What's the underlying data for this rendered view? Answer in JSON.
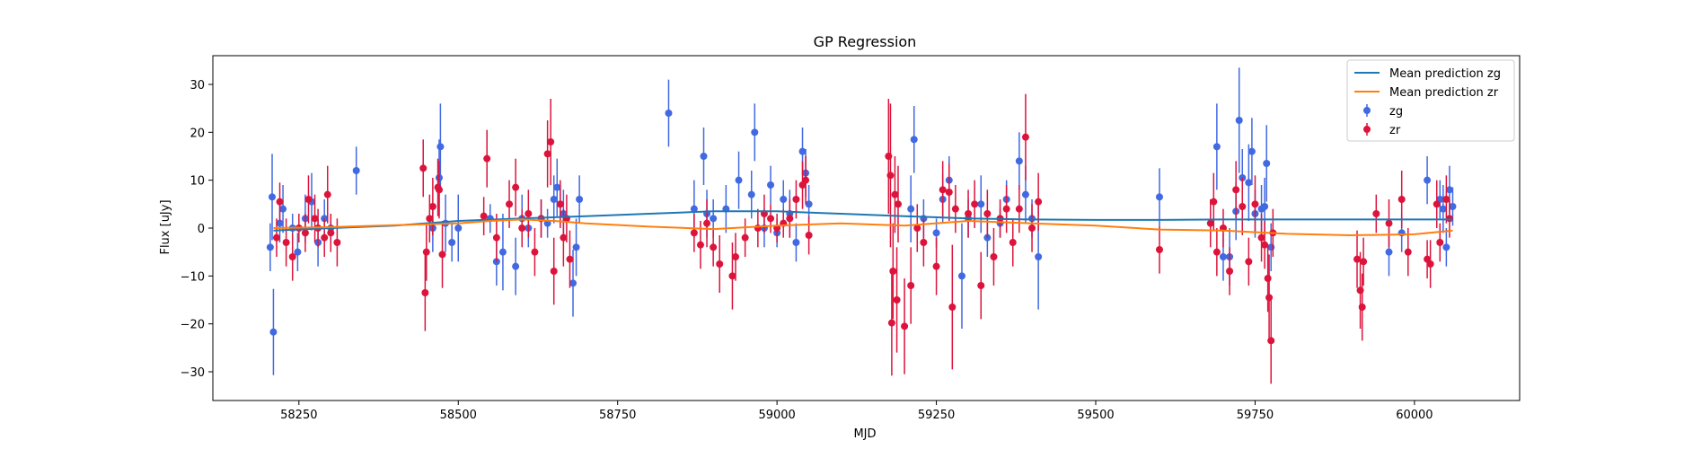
{
  "chart_data": {
    "type": "scatter",
    "title": "GP Regression",
    "xlabel": "MJD",
    "ylabel": "Flux [uJy]",
    "xlim": [
      58115,
      60165
    ],
    "ylim": [
      -36,
      36
    ],
    "xticks": [
      58250,
      58500,
      58750,
      59000,
      59250,
      59500,
      59750,
      60000
    ],
    "yticks": [
      -30,
      -20,
      -10,
      0,
      10,
      20,
      30
    ],
    "grid": false,
    "legend_position": "top-right",
    "colors": {
      "zg_line": "#1f77b4",
      "zr_line": "#ff7f0e",
      "zg_points": "#4169e1",
      "zr_points": "#dc143c"
    },
    "lines": [
      {
        "name": "Mean prediction zg",
        "color": "#1f77b4",
        "x": [
          58210,
          58300,
          58400,
          58500,
          58600,
          58700,
          58800,
          58900,
          59000,
          59100,
          59200,
          59300,
          59400,
          59500,
          59600,
          59700,
          59800,
          59900,
          60000,
          60060
        ],
        "y": [
          -0.5,
          0,
          0.5,
          1.5,
          2,
          2.5,
          3,
          3.5,
          3.5,
          3,
          2.5,
          2,
          1.8,
          1.7,
          1.7,
          1.8,
          1.8,
          1.8,
          1.8,
          1.8
        ]
      },
      {
        "name": "Mean prediction zr",
        "color": "#ff7f0e",
        "x": [
          58210,
          58300,
          58400,
          58500,
          58550,
          58600,
          58650,
          58700,
          58800,
          58900,
          59000,
          59100,
          59200,
          59300,
          59400,
          59500,
          59600,
          59700,
          59800,
          59900,
          60000,
          60060
        ],
        "y": [
          0,
          0.2,
          0.6,
          1.0,
          1.5,
          1.8,
          1.5,
          1.0,
          0.3,
          -0.2,
          0.5,
          1.0,
          0.5,
          1.5,
          1.0,
          0.5,
          -0.3,
          -0.5,
          -1.2,
          -1.5,
          -1.3,
          -0.5
        ]
      }
    ],
    "series": [
      {
        "name": "zg",
        "color": "#4169e1",
        "points": [
          [
            58205,
            -4,
            5
          ],
          [
            58208,
            6.5,
            9
          ],
          [
            58210,
            -21.7,
            9
          ],
          [
            58220,
            1,
            4
          ],
          [
            58225,
            4,
            5
          ],
          [
            58240,
            0,
            3
          ],
          [
            58248,
            -5,
            4
          ],
          [
            58260,
            2,
            5
          ],
          [
            58270,
            5.5,
            6
          ],
          [
            58280,
            -3,
            5
          ],
          [
            58290,
            2,
            4
          ],
          [
            58300,
            0,
            3
          ],
          [
            58340,
            12,
            5
          ],
          [
            58460,
            0,
            5
          ],
          [
            58470,
            10.5,
            8
          ],
          [
            58472,
            17,
            9
          ],
          [
            58480,
            1,
            6
          ],
          [
            58490,
            -3,
            4
          ],
          [
            58500,
            0,
            7
          ],
          [
            58550,
            2,
            3
          ],
          [
            58560,
            -7,
            5
          ],
          [
            58570,
            -5,
            8
          ],
          [
            58590,
            -8,
            6
          ],
          [
            58600,
            2,
            5
          ],
          [
            58610,
            0,
            4
          ],
          [
            58630,
            2,
            4
          ],
          [
            58640,
            1,
            3
          ],
          [
            58650,
            6,
            5
          ],
          [
            58655,
            8.5,
            6
          ],
          [
            58660,
            5,
            4
          ],
          [
            58665,
            3,
            5
          ],
          [
            58680,
            -11.5,
            7
          ],
          [
            58685,
            -4,
            6
          ],
          [
            58690,
            6,
            5
          ],
          [
            58830,
            24,
            7
          ],
          [
            58870,
            4,
            6
          ],
          [
            58885,
            15,
            6
          ],
          [
            58890,
            3,
            5
          ],
          [
            58900,
            2,
            4
          ],
          [
            58920,
            4,
            5
          ],
          [
            58940,
            10,
            6
          ],
          [
            58960,
            7,
            5
          ],
          [
            58965,
            20,
            6
          ],
          [
            58980,
            0,
            4
          ],
          [
            58990,
            9,
            4
          ],
          [
            59000,
            -1,
            3
          ],
          [
            59010,
            6,
            4
          ],
          [
            59020,
            3,
            5
          ],
          [
            59030,
            -3,
            4
          ],
          [
            59040,
            16,
            5
          ],
          [
            59045,
            11.5,
            5
          ],
          [
            59050,
            5,
            4
          ],
          [
            59210,
            4,
            7
          ],
          [
            59215,
            18.5,
            7
          ],
          [
            59230,
            2,
            4
          ],
          [
            59250,
            -1,
            3
          ],
          [
            59260,
            6,
            5
          ],
          [
            59270,
            10,
            5
          ],
          [
            59290,
            -10,
            11
          ],
          [
            59300,
            2,
            4
          ],
          [
            59320,
            5,
            6
          ],
          [
            59330,
            -2,
            4
          ],
          [
            59350,
            1,
            3
          ],
          [
            59360,
            6,
            4
          ],
          [
            59380,
            14,
            6
          ],
          [
            59390,
            7,
            6
          ],
          [
            59400,
            2,
            4
          ],
          [
            59410,
            -6,
            11
          ],
          [
            59600,
            6.5,
            6
          ],
          [
            59690,
            17,
            9
          ],
          [
            59700,
            -6,
            5
          ],
          [
            59710,
            -6,
            6
          ],
          [
            59720,
            3.5,
            6
          ],
          [
            59725,
            22.5,
            11
          ],
          [
            59730,
            10.5,
            6
          ],
          [
            59740,
            9.5,
            8
          ],
          [
            59745,
            16,
            7
          ],
          [
            59750,
            3,
            5
          ],
          [
            59760,
            4,
            5
          ],
          [
            59765,
            4.5,
            6
          ],
          [
            59768,
            13.5,
            8
          ],
          [
            59775,
            -4,
            5
          ],
          [
            59960,
            -5,
            5
          ],
          [
            59980,
            -1,
            4
          ],
          [
            60020,
            10,
            5
          ],
          [
            60040,
            6,
            4
          ],
          [
            60045,
            4,
            5
          ],
          [
            60050,
            -4,
            4
          ],
          [
            60055,
            8,
            5
          ],
          [
            60060,
            4.5,
            4
          ]
        ]
      },
      {
        "name": "zr",
        "color": "#dc143c",
        "points": [
          [
            58215,
            -2,
            4
          ],
          [
            58220,
            5.5,
            4
          ],
          [
            58230,
            -3,
            5
          ],
          [
            58240,
            -6,
            5
          ],
          [
            58250,
            0,
            3
          ],
          [
            58260,
            -1,
            4
          ],
          [
            58265,
            6,
            5
          ],
          [
            58275,
            2,
            5
          ],
          [
            58280,
            0,
            4
          ],
          [
            58290,
            -2,
            4
          ],
          [
            58295,
            7,
            6
          ],
          [
            58300,
            -1,
            4
          ],
          [
            58310,
            -3,
            5
          ],
          [
            58445,
            12.5,
            6
          ],
          [
            58448,
            -13.5,
            8
          ],
          [
            58450,
            -5,
            6
          ],
          [
            58455,
            2,
            5
          ],
          [
            58460,
            4.5,
            6
          ],
          [
            58468,
            8.5,
            6
          ],
          [
            58470,
            8,
            6
          ],
          [
            58475,
            -5.5,
            7
          ],
          [
            58540,
            2.5,
            4
          ],
          [
            58545,
            14.5,
            6
          ],
          [
            58560,
            -2,
            5
          ],
          [
            58580,
            5,
            5
          ],
          [
            58590,
            8.5,
            6
          ],
          [
            58600,
            0,
            4
          ],
          [
            58610,
            3,
            5
          ],
          [
            58620,
            -5,
            5
          ],
          [
            58630,
            2,
            4
          ],
          [
            58640,
            15.5,
            7
          ],
          [
            58645,
            18,
            9
          ],
          [
            58650,
            -9,
            7
          ],
          [
            58660,
            5,
            5
          ],
          [
            58665,
            -2,
            6
          ],
          [
            58670,
            2,
            5
          ],
          [
            58675,
            -6.5,
            6
          ],
          [
            58870,
            -1,
            4
          ],
          [
            58880,
            -3.5,
            5
          ],
          [
            58890,
            1,
            5
          ],
          [
            58900,
            -4,
            4
          ],
          [
            58910,
            -7.5,
            6
          ],
          [
            58930,
            -10,
            7
          ],
          [
            58935,
            -6,
            5
          ],
          [
            58950,
            -2,
            4
          ],
          [
            58970,
            0,
            4
          ],
          [
            58980,
            3,
            4
          ],
          [
            58990,
            2,
            3
          ],
          [
            59000,
            0,
            3
          ],
          [
            59010,
            1,
            3
          ],
          [
            59020,
            2,
            4
          ],
          [
            59030,
            6,
            4
          ],
          [
            59040,
            9,
            5
          ],
          [
            59045,
            10,
            5
          ],
          [
            59050,
            -1.5,
            4
          ],
          [
            59175,
            15,
            12
          ],
          [
            59178,
            11,
            15
          ],
          [
            59180,
            -19.8,
            11
          ],
          [
            59182,
            -9,
            10
          ],
          [
            59185,
            7,
            8
          ],
          [
            59188,
            -15,
            11
          ],
          [
            59190,
            5,
            8
          ],
          [
            59200,
            -20.5,
            10
          ],
          [
            59210,
            -12,
            8
          ],
          [
            59220,
            0,
            5
          ],
          [
            59230,
            -3,
            5
          ],
          [
            59250,
            -8,
            6
          ],
          [
            59260,
            8,
            6
          ],
          [
            59270,
            7.5,
            6
          ],
          [
            59275,
            -16.5,
            13
          ],
          [
            59280,
            4,
            5
          ],
          [
            59300,
            3,
            5
          ],
          [
            59310,
            5,
            5
          ],
          [
            59320,
            -12,
            7
          ],
          [
            59330,
            3,
            5
          ],
          [
            59340,
            -6,
            6
          ],
          [
            59350,
            2,
            4
          ],
          [
            59360,
            4,
            5
          ],
          [
            59370,
            -3,
            5
          ],
          [
            59380,
            4,
            5
          ],
          [
            59390,
            19,
            9
          ],
          [
            59400,
            0,
            5
          ],
          [
            59410,
            5.5,
            6
          ],
          [
            59600,
            -4.5,
            5
          ],
          [
            59680,
            1,
            5
          ],
          [
            59685,
            5.5,
            6
          ],
          [
            59690,
            -5,
            5
          ],
          [
            59700,
            0,
            4
          ],
          [
            59710,
            -9,
            5
          ],
          [
            59720,
            8,
            6
          ],
          [
            59730,
            4.5,
            6
          ],
          [
            59740,
            -7,
            5
          ],
          [
            59750,
            5,
            6
          ],
          [
            59760,
            -2,
            5
          ],
          [
            59765,
            -3.5,
            5
          ],
          [
            59770,
            -10.5,
            7
          ],
          [
            59772,
            -14.5,
            9
          ],
          [
            59775,
            -23.5,
            9
          ],
          [
            59778,
            -1,
            5
          ],
          [
            59910,
            -6.5,
            6
          ],
          [
            59915,
            -13,
            8
          ],
          [
            59918,
            -16.5,
            7
          ],
          [
            59920,
            -7,
            5
          ],
          [
            59940,
            3,
            4
          ],
          [
            59960,
            1,
            5
          ],
          [
            59980,
            6,
            6
          ],
          [
            59990,
            -5,
            5
          ],
          [
            60020,
            -6.5,
            4
          ],
          [
            60025,
            -7.5,
            5
          ],
          [
            60035,
            5,
            5
          ],
          [
            60040,
            -3,
            4
          ],
          [
            60050,
            6,
            5
          ],
          [
            60055,
            2,
            4
          ]
        ]
      }
    ]
  }
}
